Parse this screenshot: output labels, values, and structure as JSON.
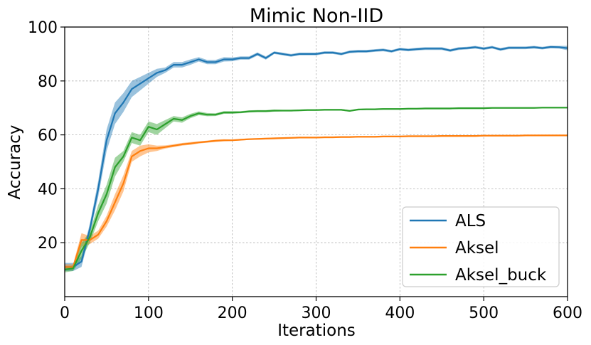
{
  "chart_data": {
    "type": "line",
    "title": "Mimic Non-IID",
    "xlabel": "Iterations",
    "ylabel": "Accuracy",
    "xlim": [
      0,
      600
    ],
    "ylim": [
      0,
      100
    ],
    "xticks": [
      "0",
      "100",
      "200",
      "300",
      "400",
      "500",
      "600"
    ],
    "yticks": [
      "20",
      "40",
      "60",
      "80",
      "100"
    ],
    "grid": true,
    "legend_position": "lower-right",
    "x": [
      0,
      10,
      20,
      30,
      40,
      50,
      60,
      70,
      80,
      90,
      100,
      110,
      120,
      130,
      140,
      150,
      160,
      170,
      180,
      190,
      200,
      210,
      220,
      230,
      240,
      250,
      260,
      270,
      280,
      290,
      300,
      310,
      320,
      330,
      340,
      350,
      360,
      370,
      380,
      390,
      400,
      410,
      420,
      430,
      440,
      450,
      460,
      470,
      480,
      490,
      500,
      510,
      520,
      530,
      540,
      550,
      560,
      570,
      580,
      590,
      600
    ],
    "series": [
      {
        "name": "ALS",
        "color": "#1f77b4",
        "values": [
          11,
          11,
          13,
          25,
          40,
          58,
          68,
          72,
          77,
          79,
          81,
          83,
          84,
          86,
          86,
          87,
          88,
          87,
          87,
          88,
          88,
          88.5,
          88.5,
          90,
          88.5,
          90.5,
          90,
          89.5,
          90,
          90,
          90,
          90.5,
          90.5,
          90,
          90.8,
          91,
          91,
          91.3,
          91.5,
          91,
          91.8,
          91.5,
          91.8,
          92,
          92,
          92,
          91.3,
          92,
          92.2,
          92.5,
          92,
          92.5,
          91.7,
          92.3,
          92.3,
          92.3,
          92.5,
          92.2,
          92.6,
          92.5,
          92.2
        ],
        "band": [
          1.5,
          1.5,
          2,
          2,
          3,
          4,
          4,
          3.5,
          3,
          2.5,
          2,
          1.5,
          1,
          1,
          1,
          1,
          0.8,
          0.8,
          0.8,
          0.8,
          0.7,
          0.6,
          0.6,
          0.6,
          0.6,
          0.5,
          0.5,
          0.5,
          0.5,
          0.5,
          0.5,
          0.5,
          0.5,
          0.5,
          0.5,
          0.5,
          0.5,
          0.5,
          0.5,
          0.5,
          0.5,
          0.5,
          0.5,
          0.5,
          0.5,
          0.5,
          0.5,
          0.5,
          0.5,
          0.5,
          0.5,
          0.5,
          0.5,
          0.5,
          0.5,
          0.5,
          0.5,
          0.5,
          0.5,
          0.5,
          0.8
        ]
      },
      {
        "name": "Aksel",
        "color": "#ff7f0e",
        "values": [
          11,
          11,
          21,
          21,
          23,
          28,
          35,
          42,
          52,
          54,
          55,
          55,
          55.5,
          56,
          56.5,
          56.8,
          57.2,
          57.5,
          57.8,
          58,
          58,
          58.2,
          58.4,
          58.5,
          58.6,
          58.7,
          58.8,
          58.9,
          59,
          59,
          59,
          59.1,
          59.1,
          59.2,
          59.2,
          59.3,
          59.3,
          59.3,
          59.4,
          59.4,
          59.4,
          59.5,
          59.5,
          59.5,
          59.5,
          59.6,
          59.6,
          59.6,
          59.6,
          59.6,
          59.7,
          59.7,
          59.7,
          59.7,
          59.7,
          59.8,
          59.8,
          59.8,
          59.8,
          59.8,
          59.8
        ],
        "band": [
          1,
          1,
          2.5,
          1.5,
          1.5,
          2,
          3,
          3,
          2,
          2,
          1.5,
          1,
          0.6,
          0.5,
          0.5,
          0.5,
          0.4,
          0.4,
          0.4,
          0.4,
          0.3,
          0.3,
          0.3,
          0.3,
          0.3,
          0.3,
          0.3,
          0.3,
          0.3,
          0.3,
          0.3,
          0.3,
          0.3,
          0.3,
          0.3,
          0.3,
          0.3,
          0.3,
          0.3,
          0.3,
          0.3,
          0.3,
          0.3,
          0.3,
          0.3,
          0.3,
          0.3,
          0.3,
          0.3,
          0.3,
          0.3,
          0.3,
          0.3,
          0.3,
          0.3,
          0.3,
          0.3,
          0.3,
          0.3,
          0.3,
          0.3
        ]
      },
      {
        "name": "Aksel_buck",
        "color": "#2ca02c",
        "values": [
          10,
          10.5,
          17,
          22,
          31,
          38,
          48,
          52,
          59,
          58,
          63,
          62,
          64,
          66,
          65.5,
          67,
          68,
          67.5,
          67.5,
          68.3,
          68.3,
          68.4,
          68.7,
          68.8,
          68.8,
          69,
          69,
          69,
          69.1,
          69.2,
          69.2,
          69.3,
          69.3,
          69.3,
          68.9,
          69.4,
          69.5,
          69.5,
          69.6,
          69.6,
          69.6,
          69.7,
          69.7,
          69.8,
          69.8,
          69.8,
          69.8,
          69.9,
          69.9,
          69.9,
          69.9,
          70,
          70,
          70,
          70,
          70,
          70,
          70.1,
          70.1,
          70.1,
          70.1
        ],
        "band": [
          1,
          1,
          3,
          2,
          3,
          3.5,
          3.5,
          2,
          2,
          2,
          2,
          2,
          1.5,
          1,
          1,
          0.8,
          0.7,
          0.6,
          0.5,
          0.5,
          0.5,
          0.4,
          0.4,
          0.4,
          0.4,
          0.4,
          0.3,
          0.3,
          0.3,
          0.3,
          0.3,
          0.3,
          0.3,
          0.3,
          0.3,
          0.3,
          0.3,
          0.3,
          0.3,
          0.3,
          0.3,
          0.3,
          0.3,
          0.3,
          0.3,
          0.3,
          0.3,
          0.3,
          0.3,
          0.3,
          0.3,
          0.3,
          0.3,
          0.3,
          0.3,
          0.3,
          0.3,
          0.3,
          0.3,
          0.3,
          0.3
        ]
      }
    ]
  }
}
